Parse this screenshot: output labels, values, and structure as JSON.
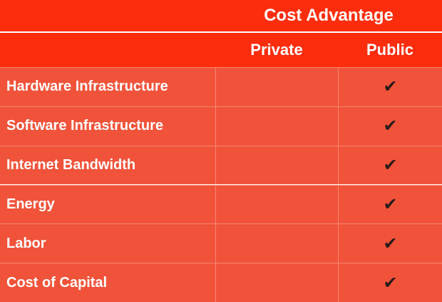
{
  "header": {
    "title": "Cost Advantage",
    "columns": [
      "Private",
      "Public"
    ]
  },
  "rows": [
    {
      "label": "Hardware Infrastructure",
      "public": "✔"
    },
    {
      "label": "Software Infrastructure",
      "public": "✔"
    },
    {
      "label": "Internet Bandwidth",
      "public": "✔"
    },
    {
      "label": "Energy",
      "public": "✔"
    },
    {
      "label": "Labor",
      "public": "✔"
    },
    {
      "label": "Cost of Capital",
      "public": "✔"
    }
  ]
}
